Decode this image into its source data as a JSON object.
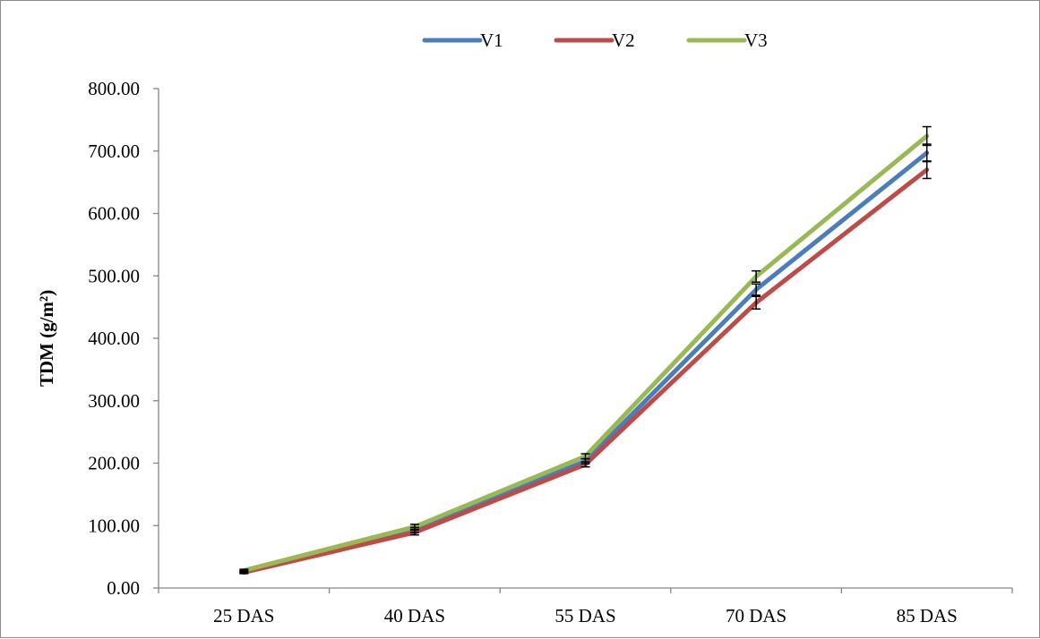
{
  "chart_data": {
    "type": "line",
    "title": "",
    "xlabel": "",
    "ylabel": "TDM (g/m²)",
    "categories": [
      "25 DAS",
      "40 DAS",
      "55 DAS",
      "70 DAS",
      "85 DAS"
    ],
    "ylim": [
      0,
      800
    ],
    "yticks": [
      "0.00",
      "100.00",
      "200.00",
      "300.00",
      "400.00",
      "500.00",
      "600.00",
      "700.00",
      "800.00"
    ],
    "grid": false,
    "legend_position": "top",
    "error_bars": true,
    "series": [
      {
        "name": "V1",
        "color": "#4a7ebb",
        "values": [
          26,
          93,
          203,
          478,
          697
        ],
        "errors": [
          2,
          4,
          4,
          9,
          14
        ]
      },
      {
        "name": "V2",
        "color": "#be4b48",
        "values": [
          25,
          89,
          198,
          457,
          670
        ],
        "errors": [
          2,
          4,
          4,
          10,
          14
        ]
      },
      {
        "name": "V3",
        "color": "#98b954",
        "values": [
          28,
          98,
          211,
          499,
          724
        ],
        "errors": [
          2,
          4,
          4,
          9,
          15
        ]
      }
    ]
  }
}
